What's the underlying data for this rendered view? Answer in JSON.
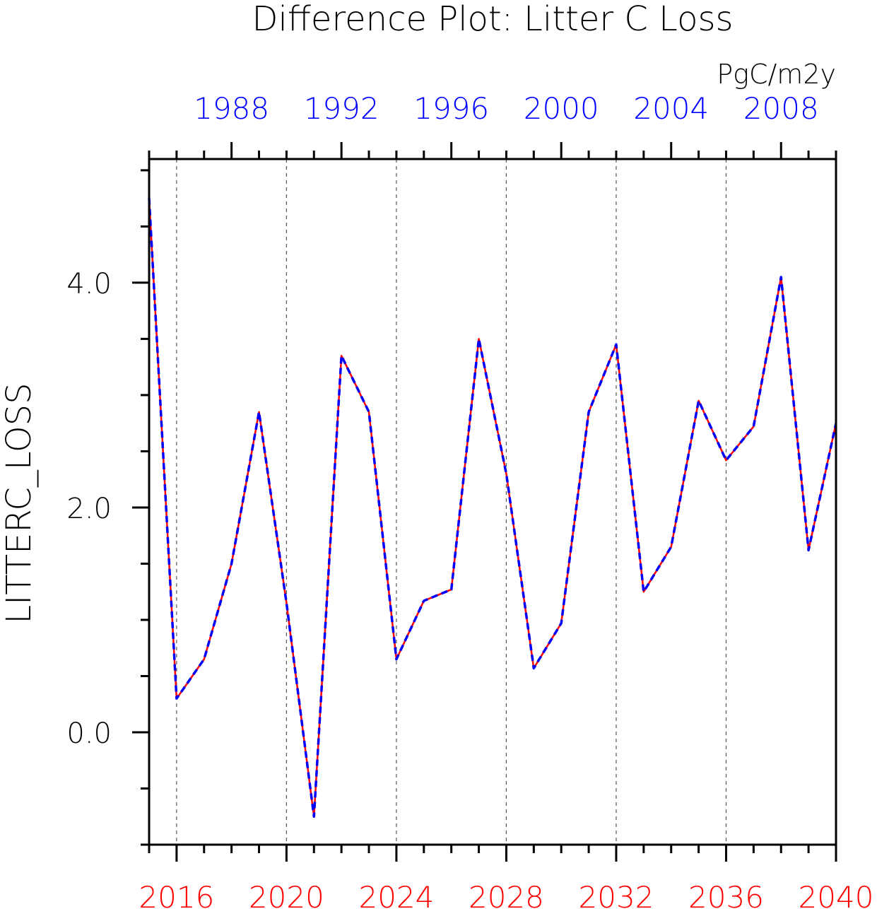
{
  "chart_data": {
    "type": "line",
    "title": "Difference Plot: Litter C Loss",
    "units": "PgC/m2y",
    "ylabel": "LITTERC_LOSS",
    "xlabel": "",
    "ylim": [
      -1.0,
      5.1
    ],
    "y_ticks": [
      "0.0",
      "2.0",
      "4.0"
    ],
    "y_tick_values": [
      0.0,
      2.0,
      4.0
    ],
    "y_minor_step": 0.5,
    "bottom_axis": {
      "color": "#ff0000",
      "range": [
        2015,
        2040
      ],
      "ticks": [
        "2016",
        "2020",
        "2024",
        "2028",
        "2032",
        "2036",
        "2040"
      ],
      "tick_values": [
        2016,
        2020,
        2024,
        2028,
        2032,
        2036,
        2040
      ]
    },
    "top_axis": {
      "color": "#0000ff",
      "range": [
        1985,
        2010
      ],
      "ticks": [
        "1988",
        "1992",
        "1996",
        "2000",
        "2004",
        "2008"
      ],
      "tick_values": [
        1988,
        1992,
        1996,
        2000,
        2004,
        2008
      ]
    },
    "grid": "vertical dashed at bottom-axis major ticks",
    "x": [
      2015,
      2016,
      2017,
      2018,
      2019,
      2020,
      2021,
      2022,
      2023,
      2024,
      2025,
      2026,
      2027,
      2028,
      2029,
      2030,
      2031,
      2032,
      2033,
      2034,
      2035,
      2036,
      2037,
      2038,
      2039,
      2040
    ],
    "series": [
      {
        "color": "#ff0000",
        "style": "solid",
        "values": [
          4.75,
          0.3,
          0.65,
          1.5,
          2.85,
          1.15,
          -0.75,
          3.35,
          2.85,
          0.65,
          1.17,
          1.27,
          3.5,
          2.3,
          0.57,
          0.97,
          2.85,
          3.45,
          1.25,
          1.65,
          2.95,
          2.42,
          2.72,
          4.05,
          1.62,
          2.75
        ]
      },
      {
        "color": "#0000ff",
        "style": "dashed",
        "values": [
          4.75,
          0.3,
          0.65,
          1.5,
          2.85,
          1.15,
          -0.75,
          3.35,
          2.85,
          0.65,
          1.17,
          1.27,
          3.5,
          2.3,
          0.57,
          0.97,
          2.85,
          3.45,
          1.25,
          1.65,
          2.95,
          2.42,
          2.72,
          4.05,
          1.62,
          2.75
        ]
      }
    ]
  }
}
